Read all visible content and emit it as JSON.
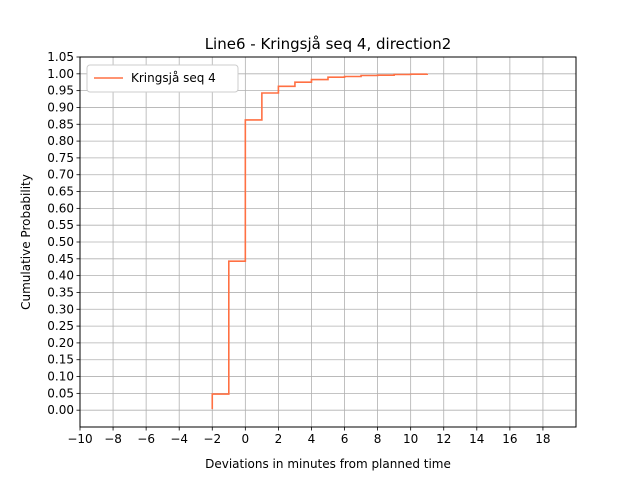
{
  "chart_data": {
    "type": "line",
    "title": "Line6 - Kringsjå seq 4, direction2",
    "xlabel": "Deviations in minutes from planned time",
    "ylabel": "Cumulative Probability",
    "xlim": [
      -10,
      20
    ],
    "ylim": [
      -0.05,
      1.05
    ],
    "x_ticks": [
      -10,
      -8,
      -6,
      -4,
      -2,
      0,
      2,
      4,
      6,
      8,
      10,
      12,
      14,
      16,
      18
    ],
    "x_tick_labels": [
      "−10",
      "−8",
      "−6",
      "−4",
      "−2",
      "0",
      "2",
      "4",
      "6",
      "8",
      "10",
      "12",
      "14",
      "16",
      "18"
    ],
    "y_ticks": [
      0,
      0.05,
      0.1,
      0.15,
      0.2,
      0.25,
      0.3,
      0.35,
      0.4,
      0.45,
      0.5,
      0.55,
      0.6,
      0.65,
      0.7,
      0.75,
      0.8,
      0.85,
      0.9,
      0.95,
      1.0,
      1.05
    ],
    "y_tick_labels": [
      "0.00",
      "0.05",
      "0.10",
      "0.15",
      "0.20",
      "0.25",
      "0.30",
      "0.35",
      "0.40",
      "0.45",
      "0.50",
      "0.55",
      "0.60",
      "0.65",
      "0.70",
      "0.75",
      "0.80",
      "0.85",
      "0.90",
      "0.95",
      "1.00",
      "1.05"
    ],
    "grid": true,
    "legend_position": "upper-left",
    "series": [
      {
        "name": "Kringsjå seq 4",
        "color": "#ff7043",
        "drawstyle": "steps-post",
        "x": [
          -2,
          -2,
          -1,
          0,
          1,
          2,
          3,
          4,
          5,
          6,
          7,
          8,
          9,
          10,
          11
        ],
        "y": [
          0.003,
          0.048,
          0.443,
          0.863,
          0.943,
          0.963,
          0.975,
          0.983,
          0.99,
          0.992,
          0.995,
          0.996,
          0.998,
          0.999,
          1.0
        ]
      }
    ]
  }
}
